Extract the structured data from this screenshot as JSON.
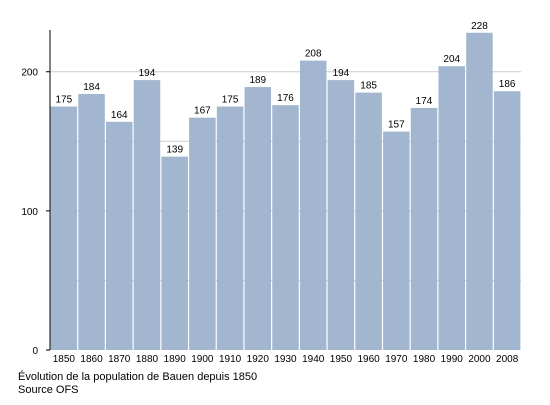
{
  "chart_data": {
    "type": "bar",
    "categories": [
      "1850",
      "1860",
      "1870",
      "1880",
      "1890",
      "1900",
      "1910",
      "1920",
      "1930",
      "1940",
      "1950",
      "1960",
      "1970",
      "1980",
      "1990",
      "2000",
      "2008"
    ],
    "values": [
      175,
      184,
      164,
      194,
      139,
      167,
      175,
      189,
      176,
      208,
      194,
      185,
      157,
      174,
      204,
      228,
      186
    ],
    "ylim": [
      0,
      230
    ],
    "yticks": [
      0,
      100,
      200
    ],
    "grid": true,
    "bar_color": "#a2b6cf",
    "grid_color": "#cccccc",
    "axis_color": "#000000",
    "title": "",
    "xlabel": "",
    "ylabel": ""
  },
  "caption": {
    "line1": "Évolution de la population de Bauen depuis 1850",
    "line2": "Source OFS"
  }
}
